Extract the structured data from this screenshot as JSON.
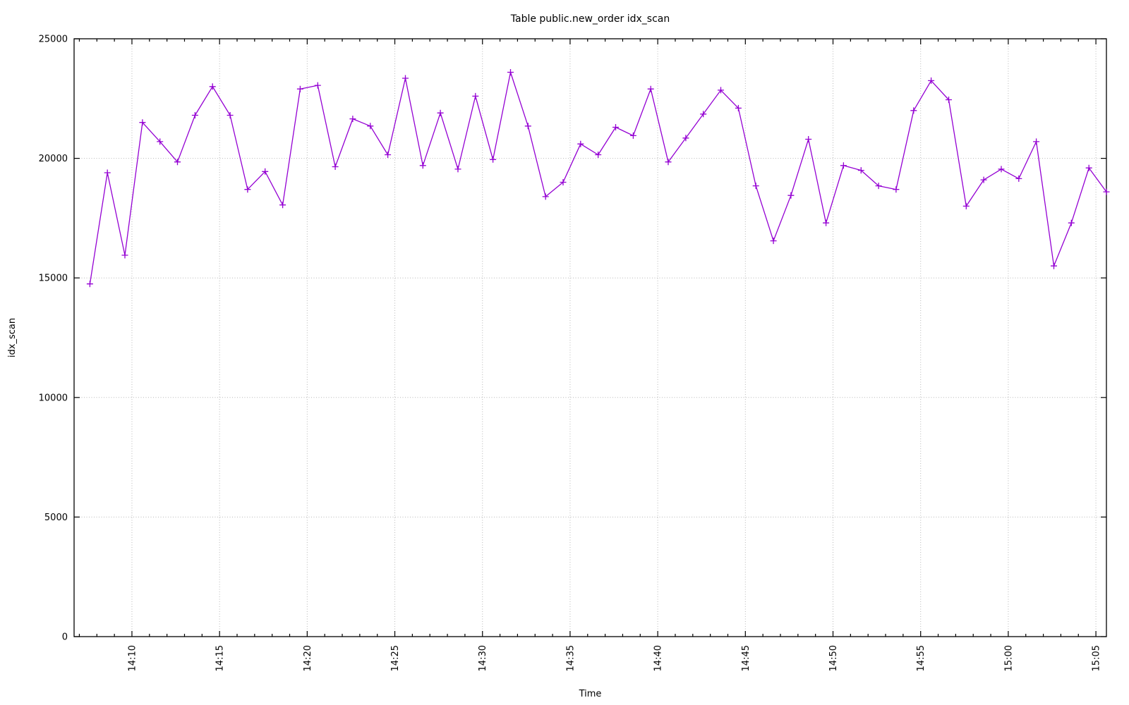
{
  "page": {
    "background": "#ffffff"
  },
  "chart_data": {
    "type": "line",
    "title": "Table public.new_order idx_scan",
    "xlabel": "Time",
    "ylabel": "idx_scan",
    "series_name": "idx_scan",
    "series_color": "#9400d3",
    "marker": "plus",
    "grid": "dotted major gridlines on",
    "legend_position": "none",
    "background": "#ffffff",
    "x_axis": {
      "unit": "clock time (HH:MM), minutes after 14:00 used as numeric x",
      "domain_minutes_after_1400": [
        6.7,
        65.6
      ],
      "minor_tick_every_minutes": 1,
      "major_ticks": [
        {
          "m": 10,
          "label": "14:10"
        },
        {
          "m": 15,
          "label": "14:15"
        },
        {
          "m": 20,
          "label": "14:20"
        },
        {
          "m": 25,
          "label": "14:25"
        },
        {
          "m": 30,
          "label": "14:30"
        },
        {
          "m": 35,
          "label": "14:35"
        },
        {
          "m": 40,
          "label": "14:40"
        },
        {
          "m": 45,
          "label": "14:45"
        },
        {
          "m": 50,
          "label": "14:50"
        },
        {
          "m": 55,
          "label": "14:55"
        },
        {
          "m": 60,
          "label": "15:00"
        },
        {
          "m": 65,
          "label": "15:05"
        }
      ]
    },
    "y_axis": {
      "range": [
        0,
        25000
      ],
      "ticks": [
        {
          "v": 0,
          "label": "0"
        },
        {
          "v": 5000,
          "label": "5000"
        },
        {
          "v": 10000,
          "label": "10000"
        },
        {
          "v": 15000,
          "label": "15000"
        },
        {
          "v": 20000,
          "label": "20000"
        },
        {
          "v": 25000,
          "label": "25000"
        }
      ]
    },
    "points": {
      "x_minutes_after_1400": [
        7.6,
        8.6,
        9.6,
        10.6,
        11.6,
        12.6,
        13.6,
        14.6,
        15.6,
        16.6,
        17.6,
        18.6,
        19.6,
        20.6,
        21.6,
        22.6,
        23.6,
        24.6,
        25.6,
        26.6,
        27.6,
        28.6,
        29.6,
        30.6,
        31.6,
        32.6,
        33.6,
        34.6,
        35.6,
        36.6,
        37.6,
        38.6,
        39.6,
        40.6,
        41.6,
        42.6,
        43.6,
        44.6,
        45.6,
        46.6,
        47.6,
        48.6,
        49.6,
        50.6,
        51.6,
        52.6,
        53.6,
        54.6,
        55.6,
        56.6,
        57.6,
        58.6,
        59.6,
        60.6,
        61.6,
        62.6,
        63.6,
        64.6,
        65.6
      ],
      "values": [
        14750,
        19400,
        15950,
        21500,
        20700,
        19850,
        21800,
        23000,
        21800,
        18700,
        19450,
        18050,
        22900,
        23050,
        19650,
        21650,
        21350,
        20150,
        23350,
        19700,
        21900,
        19550,
        22600,
        19950,
        23600,
        21350,
        18400,
        19000,
        20600,
        20150,
        21300,
        20950,
        22900,
        19850,
        20850,
        21850,
        22850,
        22100,
        18850,
        16550,
        18450,
        20800,
        17300,
        19700,
        19500,
        18850,
        18700,
        22000,
        23250,
        22450,
        18000,
        19100,
        19550,
        19150,
        20700,
        15500,
        17300,
        19600,
        18600
      ]
    }
  }
}
